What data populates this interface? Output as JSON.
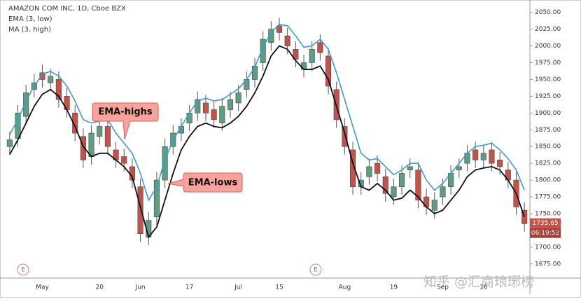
{
  "chart_data": {
    "type": "candlestick",
    "title": "AMAZON COM INC, 1D, Cboe BZX",
    "categories": [
      null,
      null,
      null,
      null,
      "May",
      null,
      null,
      null,
      null,
      null,
      null,
      "20",
      null,
      null,
      null,
      null,
      "Jun",
      null,
      null,
      null,
      null,
      null,
      "17",
      null,
      null,
      null,
      null,
      null,
      "Jul",
      null,
      null,
      null,
      null,
      "15",
      null,
      null,
      null,
      null,
      null,
      null,
      null,
      "Aug",
      null,
      null,
      null,
      null,
      null,
      "19",
      null,
      null,
      null,
      null,
      null,
      "Sep",
      null,
      null,
      null,
      null,
      "16",
      null,
      null,
      null,
      null,
      null
    ],
    "open": [
      1850,
      1862,
      1895,
      1935,
      1960,
      1945,
      1950,
      1925,
      1900,
      1865,
      1835,
      1865,
      1880,
      1845,
      1835,
      1820,
      1790,
      1715,
      1745,
      1800,
      1850,
      1870,
      1885,
      1900,
      1915,
      1905,
      1885,
      1905,
      1915,
      1935,
      1950,
      1975,
      2005,
      2030,
      2015,
      1995,
      1965,
      1975,
      2005,
      1985,
      1935,
      1880,
      1845,
      1790,
      1805,
      1825,
      1805,
      1775,
      1790,
      1815,
      1815,
      1775,
      1755,
      1775,
      1790,
      1815,
      1825,
      1845,
      1830,
      1845,
      1830,
      1815,
      1800,
      1755
    ],
    "high": [
      1872,
      1912,
      1942,
      1958,
      1972,
      1966,
      1962,
      1937,
      1912,
      1877,
      1882,
      1892,
      1892,
      1857,
      1847,
      1832,
      1802,
      1752,
      1812,
      1862,
      1882,
      1892,
      1912,
      1932,
      1927,
      1917,
      1922,
      1932,
      1942,
      1962,
      1982,
      2022,
      2037,
      2042,
      2027,
      2007,
      1987,
      2007,
      2017,
      1997,
      1947,
      1892,
      1857,
      1812,
      1832,
      1837,
      1817,
      1802,
      1822,
      1832,
      1827,
      1787,
      1782,
      1802,
      1822,
      1832,
      1852,
      1857,
      1852,
      1857,
      1842,
      1827,
      1812,
      1767
    ],
    "low": [
      1838,
      1850,
      1883,
      1923,
      1938,
      1933,
      1908,
      1893,
      1858,
      1818,
      1823,
      1853,
      1838,
      1818,
      1813,
      1788,
      1708,
      1703,
      1733,
      1788,
      1838,
      1858,
      1873,
      1888,
      1888,
      1878,
      1873,
      1893,
      1903,
      1923,
      1938,
      1963,
      1993,
      2008,
      1988,
      1968,
      1953,
      1963,
      1978,
      1928,
      1878,
      1838,
      1778,
      1778,
      1793,
      1798,
      1768,
      1763,
      1778,
      1803,
      1758,
      1748,
      1743,
      1763,
      1778,
      1803,
      1813,
      1818,
      1818,
      1813,
      1808,
      1788,
      1748,
      1723
    ],
    "close": [
      1860,
      1900,
      1930,
      1945,
      1950,
      1955,
      1920,
      1905,
      1870,
      1830,
      1870,
      1880,
      1850,
      1830,
      1825,
      1800,
      1720,
      1740,
      1800,
      1850,
      1870,
      1880,
      1900,
      1920,
      1900,
      1890,
      1910,
      1920,
      1930,
      1950,
      1970,
      2010,
      2025,
      2020,
      2000,
      1980,
      1975,
      1995,
      1990,
      1940,
      1890,
      1850,
      1790,
      1800,
      1820,
      1810,
      1780,
      1790,
      1810,
      1820,
      1770,
      1760,
      1770,
      1790,
      1810,
      1820,
      1840,
      1830,
      1840,
      1825,
      1820,
      1800,
      1760,
      1735
    ],
    "up_color": "#5b9e80",
    "down_color": "#c4524a",
    "series": [
      {
        "name": "EMA (3, low)",
        "color": "#111111",
        "values": [
          1838,
          1860,
          1885,
          1910,
          1928,
          1935,
          1925,
          1905,
          1880,
          1850,
          1835,
          1840,
          1840,
          1830,
          1820,
          1805,
          1760,
          1715,
          1730,
          1770,
          1810,
          1845,
          1865,
          1880,
          1885,
          1880,
          1878,
          1885,
          1895,
          1910,
          1930,
          1955,
          1985,
          2000,
          1995,
          1978,
          1965,
          1965,
          1970,
          1950,
          1910,
          1870,
          1825,
          1790,
          1785,
          1795,
          1785,
          1770,
          1773,
          1785,
          1775,
          1760,
          1750,
          1755,
          1770,
          1785,
          1805,
          1815,
          1818,
          1820,
          1815,
          1800,
          1780,
          1745
        ]
      },
      {
        "name": "MA (3, high)",
        "color": "#3d9bd1",
        "values": [
          1868,
          1890,
          1918,
          1940,
          1958,
          1962,
          1955,
          1940,
          1918,
          1890,
          1885,
          1888,
          1890,
          1870,
          1855,
          1840,
          1810,
          1770,
          1790,
          1830,
          1860,
          1880,
          1900,
          1918,
          1922,
          1918,
          1920,
          1928,
          1936,
          1950,
          1968,
          1998,
          2020,
          2032,
          2030,
          2015,
          1998,
          2000,
          2010,
          1995,
          1960,
          1920,
          1880,
          1840,
          1830,
          1832,
          1820,
          1808,
          1815,
          1825,
          1825,
          1800,
          1785,
          1795,
          1810,
          1825,
          1840,
          1850,
          1852,
          1855,
          1845,
          1832,
          1815,
          1785
        ]
      }
    ],
    "ylim": [
      1656,
      2058
    ],
    "yticks": [
      {
        "value": 1675,
        "label": "1675.00"
      },
      {
        "value": 1700,
        "label": "1700.00"
      },
      {
        "value": 1725,
        "label": "1725.00"
      },
      {
        "value": 1750,
        "label": "1750.00"
      },
      {
        "value": 1775,
        "label": "1775.00"
      },
      {
        "value": 1800,
        "label": "1800.00"
      },
      {
        "value": 1825,
        "label": "1825.00"
      },
      {
        "value": 1850,
        "label": "1850.00"
      },
      {
        "value": 1875,
        "label": "1875.00"
      },
      {
        "value": 1900,
        "label": "1900.00"
      },
      {
        "value": 1925,
        "label": "1925.00"
      },
      {
        "value": 1950,
        "label": "1950.00"
      },
      {
        "value": 1975,
        "label": "1975.00"
      },
      {
        "value": 2000,
        "label": "2000.00"
      },
      {
        "value": 2025,
        "label": "2025.00"
      },
      {
        "value": 2050,
        "label": "2050.00"
      }
    ],
    "last_price": 1735.65,
    "countdown": "06:19:52",
    "annotations": [
      "EMA-highs",
      "EMA-lows"
    ],
    "event_label": "E",
    "watermark": "知乎 @汇商琅琊榜"
  }
}
